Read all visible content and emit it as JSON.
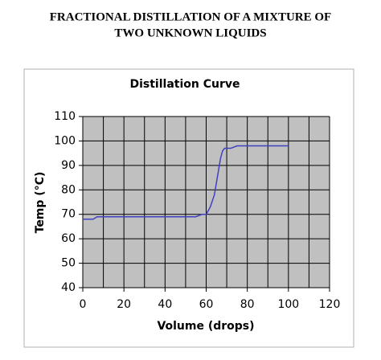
{
  "document": {
    "title_lines": [
      "FRACTIONAL DISTILLATION OF A MIXTURE OF",
      "TWO UNKNOWN LIQUIDS"
    ]
  },
  "chart_data": {
    "type": "line",
    "title": "Distillation Curve",
    "x_label": "Volume (drops)",
    "y_label": "Temp (°C)",
    "x": [
      0,
      5,
      7,
      10,
      55,
      58,
      60,
      62,
      64,
      65,
      66,
      67,
      68,
      69,
      70,
      72,
      75,
      80,
      90,
      100
    ],
    "series": [
      {
        "color": "#4040c0",
        "values": [
          68,
          68,
          69,
          69,
          69,
          70,
          70,
          73,
          78,
          83,
          88,
          93,
          96,
          97,
          97,
          97,
          98,
          98,
          98,
          98
        ]
      }
    ],
    "xlim": [
      0,
      120
    ],
    "xticks": [
      0,
      20,
      40,
      60,
      80,
      100,
      120
    ],
    "x_gridlines": [
      0,
      10,
      20,
      30,
      40,
      50,
      60,
      70,
      80,
      90,
      100,
      110,
      120
    ],
    "ylim": [
      40,
      110
    ],
    "yticks": [
      40,
      50,
      60,
      70,
      80,
      90,
      100,
      110
    ],
    "grid": true,
    "plot_background": "#c0c0c0"
  }
}
